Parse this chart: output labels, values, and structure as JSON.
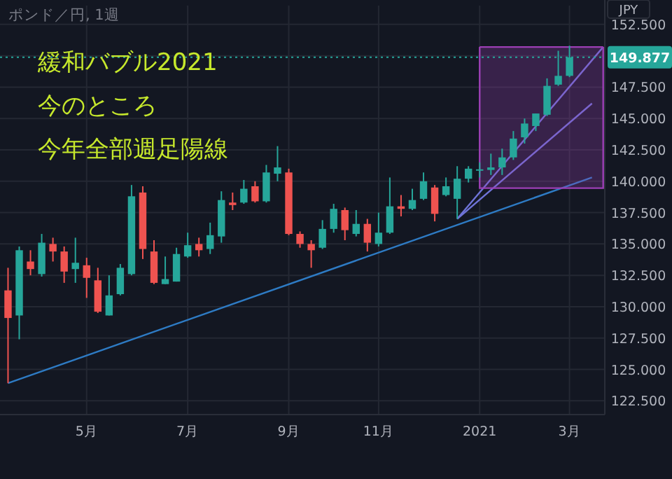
{
  "chart_data": {
    "type": "candlestick",
    "title": "ポンド／円, 1週",
    "ylabel": "JPY",
    "annotations": [
      "緩和バブル2021",
      "今のところ",
      "今年全部週足陽線"
    ],
    "x": [
      "2020-03-16",
      "2020-03-23",
      "2020-03-30",
      "2020-04-06",
      "2020-04-13",
      "2020-04-20",
      "2020-04-27",
      "2020-05-04",
      "2020-05-11",
      "2020-05-18",
      "2020-05-25",
      "2020-06-01",
      "2020-06-08",
      "2020-06-15",
      "2020-06-22",
      "2020-06-29",
      "2020-07-06",
      "2020-07-13",
      "2020-07-20",
      "2020-07-27",
      "2020-08-03",
      "2020-08-10",
      "2020-08-17",
      "2020-08-24",
      "2020-08-31",
      "2020-09-07",
      "2020-09-14",
      "2020-09-21",
      "2020-09-28",
      "2020-10-05",
      "2020-10-12",
      "2020-10-19",
      "2020-10-26",
      "2020-11-02",
      "2020-11-09",
      "2020-11-16",
      "2020-11-23",
      "2020-11-30",
      "2020-12-07",
      "2020-12-14",
      "2020-12-21",
      "2020-12-28",
      "2021-01-04",
      "2021-01-11",
      "2021-01-18",
      "2021-01-25",
      "2021-02-01",
      "2021-02-08",
      "2021-02-15",
      "2021-02-22",
      "2021-03-01"
    ],
    "ohlc": [
      [
        131.3,
        133.1,
        123.9,
        129.1
      ],
      [
        129.3,
        134.8,
        127.4,
        134.5
      ],
      [
        133.6,
        134.5,
        132.5,
        133.0
      ],
      [
        132.6,
        135.8,
        132.4,
        135.1
      ],
      [
        135.0,
        135.5,
        133.6,
        134.4
      ],
      [
        134.4,
        134.8,
        131.9,
        132.8
      ],
      [
        133.0,
        135.5,
        131.9,
        133.5
      ],
      [
        133.3,
        133.9,
        130.7,
        132.3
      ],
      [
        132.1,
        133.1,
        129.5,
        129.6
      ],
      [
        129.3,
        132.5,
        129.3,
        130.9
      ],
      [
        131.0,
        133.4,
        130.9,
        133.1
      ],
      [
        132.6,
        139.7,
        132.5,
        138.8
      ],
      [
        139.1,
        139.6,
        133.8,
        134.6
      ],
      [
        134.4,
        135.3,
        131.8,
        131.9
      ],
      [
        131.8,
        134.0,
        131.8,
        132.2
      ],
      [
        132.0,
        134.7,
        132.0,
        134.2
      ],
      [
        134.0,
        135.9,
        133.9,
        134.9
      ],
      [
        135.0,
        135.5,
        134.0,
        134.5
      ],
      [
        134.6,
        136.7,
        134.2,
        135.7
      ],
      [
        135.6,
        139.2,
        135.1,
        138.5
      ],
      [
        138.3,
        139.1,
        137.7,
        138.1
      ],
      [
        138.3,
        140.1,
        138.2,
        139.4
      ],
      [
        139.6,
        140.0,
        138.3,
        138.4
      ],
      [
        138.4,
        141.3,
        138.3,
        140.7
      ],
      [
        140.6,
        142.8,
        140.0,
        141.1
      ],
      [
        140.7,
        141.0,
        135.7,
        135.8
      ],
      [
        135.8,
        136.0,
        134.7,
        135.0
      ],
      [
        135.0,
        135.3,
        133.1,
        134.5
      ],
      [
        134.7,
        136.9,
        134.6,
        136.2
      ],
      [
        136.2,
        138.2,
        135.9,
        137.8
      ],
      [
        137.7,
        137.9,
        135.3,
        136.1
      ],
      [
        135.8,
        137.7,
        135.6,
        136.6
      ],
      [
        136.6,
        137.0,
        134.4,
        135.1
      ],
      [
        135.0,
        137.5,
        134.8,
        135.9
      ],
      [
        135.9,
        140.3,
        135.8,
        138.0
      ],
      [
        138.0,
        138.9,
        137.2,
        137.8
      ],
      [
        137.8,
        139.4,
        137.7,
        138.5
      ],
      [
        138.6,
        140.7,
        138.5,
        140.0
      ],
      [
        139.5,
        139.7,
        136.8,
        137.4
      ],
      [
        138.9,
        140.3,
        138.8,
        139.6
      ],
      [
        138.6,
        141.2,
        137.0,
        140.2
      ],
      [
        140.2,
        141.2,
        139.9,
        141.0
      ],
      [
        140.85,
        141.5,
        140.3,
        140.95
      ],
      [
        140.9,
        142.2,
        140.5,
        141.1
      ],
      [
        141.1,
        142.6,
        140.5,
        141.9
      ],
      [
        141.9,
        144.0,
        141.7,
        143.4
      ],
      [
        143.5,
        145.0,
        143.0,
        144.6
      ],
      [
        144.4,
        145.4,
        144.0,
        145.4
      ],
      [
        145.3,
        148.2,
        145.2,
        147.6
      ],
      [
        147.7,
        150.4,
        147.6,
        148.4
      ],
      [
        148.4,
        150.8,
        148.3,
        149.877
      ]
    ],
    "colors": [
      "#ef5350",
      "#26a69a",
      "#ef5350",
      "#26a69a",
      "#ef5350",
      "#ef5350",
      "#26a69a",
      "#ef5350",
      "#ef5350",
      "#26a69a",
      "#26a69a",
      "#26a69a",
      "#ef5350",
      "#ef5350",
      "#26a69a",
      "#26a69a",
      "#26a69a",
      "#ef5350",
      "#26a69a",
      "#26a69a",
      "#ef5350",
      "#26a69a",
      "#ef5350",
      "#26a69a",
      "#26a69a",
      "#ef5350",
      "#ef5350",
      "#ef5350",
      "#26a69a",
      "#26a69a",
      "#ef5350",
      "#26a69a",
      "#ef5350",
      "#26a69a",
      "#26a69a",
      "#ef5350",
      "#26a69a",
      "#26a69a",
      "#ef5350",
      "#26a69a",
      "#26a69a",
      "#26a69a",
      "#26a69a",
      "#26a69a",
      "#26a69a",
      "#26a69a",
      "#26a69a",
      "#26a69a",
      "#26a69a",
      "#26a69a",
      "#26a69a"
    ],
    "series": [
      {
        "type": "line",
        "color": "#2e7bc4",
        "x": [
          "2020-03-16",
          "2021-03-15"
        ],
        "values": [
          123.9,
          140.3
        ]
      },
      {
        "type": "line",
        "color": "#6f74d8",
        "x": [
          "2020-12-21",
          "2021-03-15"
        ],
        "values": [
          137.0,
          146.2
        ]
      },
      {
        "type": "line",
        "color": "#6f74d8",
        "x": [
          "2020-12-21",
          "2021-03-22"
        ],
        "values": [
          137.0,
          150.7
        ]
      },
      {
        "type": "line",
        "color": "#9c3fb5",
        "x": [
          "2021-01-04",
          "2021-03-22"
        ],
        "values": [
          150.7,
          150.7
        ],
        "lower": [
          139.45,
          139.45
        ],
        "upper": [
          150.7,
          150.7
        ]
      }
    ],
    "ref_lines": [
      {
        "axis": "y",
        "value": 149.877,
        "label": "149.877",
        "color": "#26a69a",
        "line_style": "dotted"
      }
    ],
    "xlim": [
      "2020-03-11",
      "2021-03-23"
    ],
    "xticks": [
      {
        "value": "2020-05-04",
        "label": "5月"
      },
      {
        "value": "2020-07-06",
        "label": "7月"
      },
      {
        "value": "2020-09-07",
        "label": "9月"
      },
      {
        "value": "2020-11-02",
        "label": "11月"
      },
      {
        "value": "2021-01-04",
        "label": "2021"
      },
      {
        "value": "2021-03-01",
        "label": "3月"
      }
    ],
    "ylim": [
      121.4,
      154
    ],
    "yticks": [
      {
        "value": 122.5,
        "label": "122.500"
      },
      {
        "value": 125,
        "label": "125.000"
      },
      {
        "value": 127.5,
        "label": "127.500"
      },
      {
        "value": 130,
        "label": "130.000"
      },
      {
        "value": 132.5,
        "label": "132.500"
      },
      {
        "value": 135,
        "label": "135.000"
      },
      {
        "value": 137.5,
        "label": "137.500"
      },
      {
        "value": 140,
        "label": "140.000"
      },
      {
        "value": 142.5,
        "label": "142.500"
      },
      {
        "value": 145,
        "label": "145.000"
      },
      {
        "value": 147.5,
        "label": "147.500"
      },
      {
        "value": 150,
        "label": null
      },
      {
        "value": 152.5,
        "label": "152.500"
      }
    ],
    "grid": true
  }
}
